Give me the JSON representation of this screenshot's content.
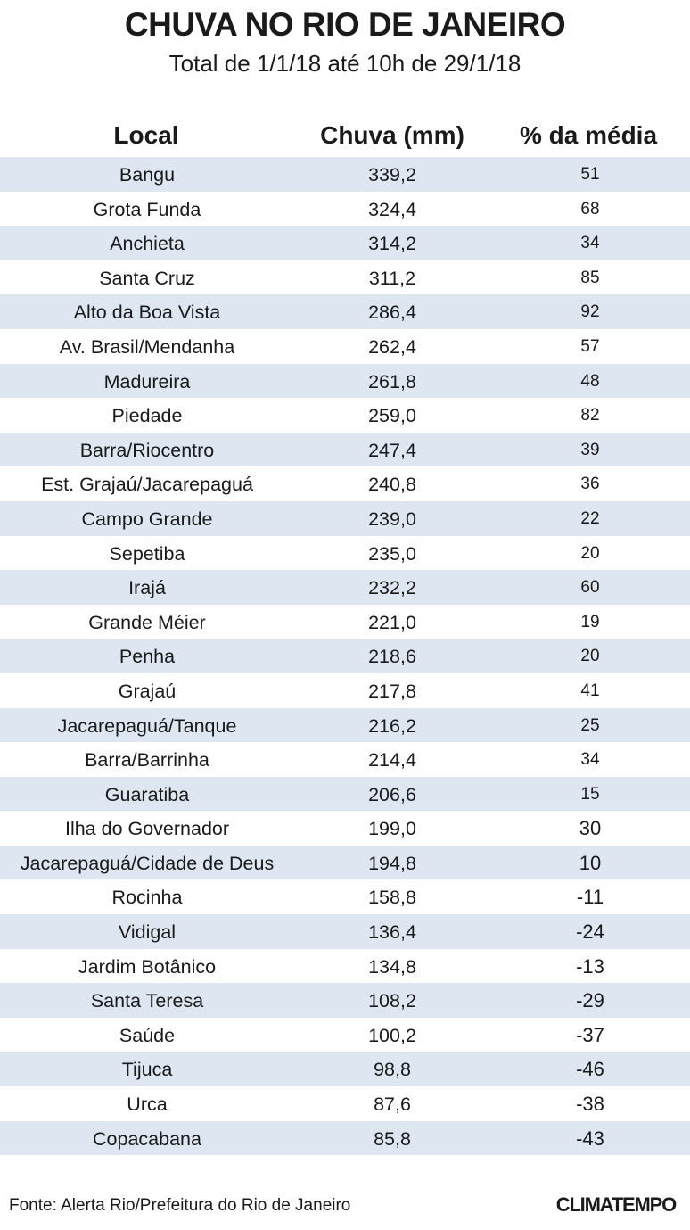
{
  "title": "CHUVA NO RIO DE JANEIRO",
  "subtitle": "Total de 1/1/18 até 10h de 29/1/18",
  "columns": [
    "Local",
    "Chuva (mm)",
    "% da média"
  ],
  "footer": "Fonte: Alerta Rio/Prefeitura do Rio de Janeiro",
  "logo": "CLIMATEMPO",
  "colors": {
    "row_shade": "#dde6f1",
    "text": "#1a1a1a"
  },
  "chart_data": {
    "type": "table",
    "title": "CHUVA NO RIO DE JANEIRO",
    "subtitle": "Total de 1/1/18 até 10h de 29/1/18",
    "columns": [
      "Local",
      "Chuva (mm)",
      "% da média"
    ],
    "rows": [
      [
        "Bangu",
        "339,2",
        "51"
      ],
      [
        "Grota Funda",
        "324,4",
        "68"
      ],
      [
        "Anchieta",
        "314,2",
        "34"
      ],
      [
        "Santa Cruz",
        "311,2",
        "85"
      ],
      [
        "Alto da Boa Vista",
        "286,4",
        "92"
      ],
      [
        "Av. Brasil/Mendanha",
        "262,4",
        "57"
      ],
      [
        "Madureira",
        "261,8",
        "48"
      ],
      [
        "Piedade",
        "259,0",
        "82"
      ],
      [
        "Barra/Riocentro",
        "247,4",
        "39"
      ],
      [
        "Est. Grajaú/Jacarepaguá",
        "240,8",
        "36"
      ],
      [
        "Campo Grande",
        "239,0",
        "22"
      ],
      [
        "Sepetiba",
        "235,0",
        "20"
      ],
      [
        "Irajá",
        "232,2",
        "60"
      ],
      [
        "Grande Méier",
        "221,0",
        "19"
      ],
      [
        "Penha",
        "218,6",
        "20"
      ],
      [
        "Grajaú",
        "217,8",
        "41"
      ],
      [
        "Jacarepaguá/Tanque",
        "216,2",
        "25"
      ],
      [
        "Barra/Barrinha",
        "214,4",
        "34"
      ],
      [
        "Guaratiba",
        "206,6",
        "15"
      ],
      [
        "Ilha do Governador",
        "199,0",
        "30"
      ],
      [
        "Jacarepaguá/Cidade de Deus",
        "194,8",
        "10"
      ],
      [
        "Rocinha",
        "158,8",
        "-11"
      ],
      [
        "Vidigal",
        "136,4",
        "-24"
      ],
      [
        "Jardim Botânico",
        "134,8",
        "-13"
      ],
      [
        "Santa Teresa",
        "108,2",
        "-29"
      ],
      [
        "Saúde",
        "100,2",
        "-37"
      ],
      [
        "Tijuca",
        "98,8",
        "-46"
      ],
      [
        "Urca",
        "87,6",
        "-38"
      ],
      [
        "Copacabana",
        "85,8",
        "-43"
      ]
    ]
  }
}
